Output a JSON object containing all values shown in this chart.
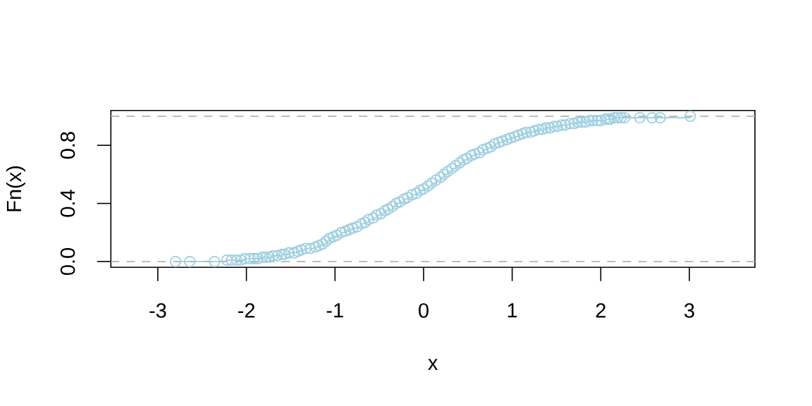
{
  "chart_data": {
    "type": "step",
    "xlabel": "x",
    "ylabel": "Fn(x)",
    "color": "#9fcfe0",
    "marker": "circle",
    "x": [
      -2.8,
      -2.64,
      -2.36,
      -2.22,
      -2.17,
      -2.11,
      -2.06,
      -2.02,
      -1.96,
      -1.91,
      -1.87,
      -1.82,
      -1.78,
      -1.74,
      -1.7,
      -1.65,
      -1.6,
      -1.57,
      -1.52,
      -1.46,
      -1.42,
      -1.38,
      -1.33,
      -1.28,
      -1.22,
      -1.18,
      -1.14,
      -1.1,
      -1.06,
      -1.02,
      -0.98,
      -0.93,
      -0.88,
      -0.84,
      -0.8,
      -0.75,
      -0.7,
      -0.66,
      -0.62,
      -0.57,
      -0.53,
      -0.48,
      -0.44,
      -0.4,
      -0.35,
      -0.31,
      -0.27,
      -0.22,
      -0.18,
      -0.13,
      -0.08,
      -0.04,
      0.0,
      0.05,
      0.09,
      0.14,
      0.19,
      0.23,
      0.27,
      0.32,
      0.36,
      0.41,
      0.45,
      0.49,
      0.54,
      0.58,
      0.63,
      0.67,
      0.72,
      0.76,
      0.8,
      0.85,
      0.89,
      0.94,
      0.98,
      1.03,
      1.07,
      1.12,
      1.16,
      1.21,
      1.25,
      1.3,
      1.34,
      1.38,
      1.43,
      1.47,
      1.51,
      1.56,
      1.6,
      1.65,
      1.7,
      1.74,
      1.78,
      1.83,
      1.87,
      1.91,
      1.96,
      2.0,
      2.05,
      2.08,
      2.11,
      2.15,
      2.19,
      2.23,
      2.27,
      2.44,
      2.58,
      2.67,
      3.01
    ],
    "values": [
      0,
      0,
      0,
      0.01,
      0.01,
      0.01,
      0.01,
      0.02,
      0.02,
      0.02,
      0.02,
      0.03,
      0.03,
      0.03,
      0.04,
      0.04,
      0.05,
      0.05,
      0.06,
      0.06,
      0.07,
      0.08,
      0.09,
      0.09,
      0.1,
      0.11,
      0.12,
      0.14,
      0.16,
      0.17,
      0.18,
      0.2,
      0.21,
      0.22,
      0.23,
      0.24,
      0.26,
      0.27,
      0.29,
      0.3,
      0.32,
      0.33,
      0.35,
      0.36,
      0.38,
      0.4,
      0.41,
      0.43,
      0.44,
      0.46,
      0.47,
      0.49,
      0.5,
      0.52,
      0.54,
      0.56,
      0.58,
      0.6,
      0.62,
      0.64,
      0.66,
      0.68,
      0.7,
      0.71,
      0.73,
      0.74,
      0.75,
      0.77,
      0.78,
      0.79,
      0.81,
      0.82,
      0.83,
      0.84,
      0.85,
      0.86,
      0.87,
      0.88,
      0.89,
      0.89,
      0.9,
      0.91,
      0.91,
      0.92,
      0.92,
      0.93,
      0.93,
      0.94,
      0.94,
      0.95,
      0.95,
      0.96,
      0.96,
      0.96,
      0.97,
      0.97,
      0.97,
      0.97,
      0.98,
      0.98,
      0.98,
      0.99,
      0.99,
      0.99,
      0.99,
      0.99,
      0.99,
      0.99,
      1.0
    ],
    "xlim": [
      -3.53,
      3.74
    ],
    "ylim": [
      -0.04,
      1.04
    ],
    "xticks": [
      -3,
      -2,
      -1,
      0,
      1,
      2,
      3
    ],
    "yticks": [
      {
        "value": 0,
        "label": "0.0"
      },
      {
        "value": 0.4,
        "label": "0.4"
      },
      {
        "value": 0.8,
        "label": "0.8"
      }
    ],
    "ref_lines": [
      {
        "axis": "y",
        "value": 0,
        "color": "#b3b3b3",
        "line_style": "dashed"
      },
      {
        "axis": "y",
        "value": 1,
        "color": "#b3b3b3",
        "line_style": "dashed"
      }
    ]
  }
}
